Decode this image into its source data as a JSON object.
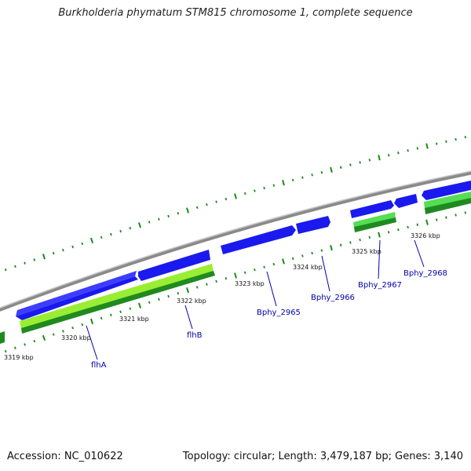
{
  "title": "Burkholderia phymatum STM815 chromosome 1, complete sequence",
  "footer": {
    "accession": "Accession: NC_010622",
    "stats": "Topology: circular; Length: 3,479,187 bp; Genes: 3,140"
  },
  "colors": {
    "backbone": "#8a8a8a",
    "cds_forward": "#1a1aee",
    "cds_dark_green": "#1f8a1f",
    "cds_light_green": "#99ee33",
    "tick": "#1a8a1a",
    "gene_label": "#0000aa"
  },
  "scale_labels": [
    {
      "text": "3319 kbp",
      "pos": 3319
    },
    {
      "text": "3320 kbp",
      "pos": 3320
    },
    {
      "text": "3321 kbp",
      "pos": 3321
    },
    {
      "text": "3322 kbp",
      "pos": 3322
    },
    {
      "text": "3323 kbp",
      "pos": 3323
    },
    {
      "text": "3324 kbp",
      "pos": 3324
    },
    {
      "text": "3325 kbp",
      "pos": 3325
    },
    {
      "text": "3326 kbp",
      "pos": 3326
    }
  ],
  "genes": [
    {
      "name": "flhA",
      "strand": "forward",
      "start": 3319.25,
      "end": 3320.55,
      "color": "blue"
    },
    {
      "name": "flhB",
      "strand": "forward",
      "start": 3320.6,
      "end": 3322.1,
      "color": "blue"
    },
    {
      "name": "Bphy_2965",
      "strand": "forward",
      "start": 3322.3,
      "end": 3323.55,
      "color": "blue"
    },
    {
      "name": "Bphy_2966",
      "strand": "forward",
      "start": 3323.58,
      "end": 3324.25,
      "color": "blue"
    },
    {
      "name": "Bphy_2967",
      "strand": "forward",
      "start": 3324.55,
      "end": 3325.3,
      "color": "blue"
    },
    {
      "name": "Bphy_2968",
      "strand": "reverse",
      "start": 3325.4,
      "end": 3325.85,
      "color": "blue"
    }
  ]
}
